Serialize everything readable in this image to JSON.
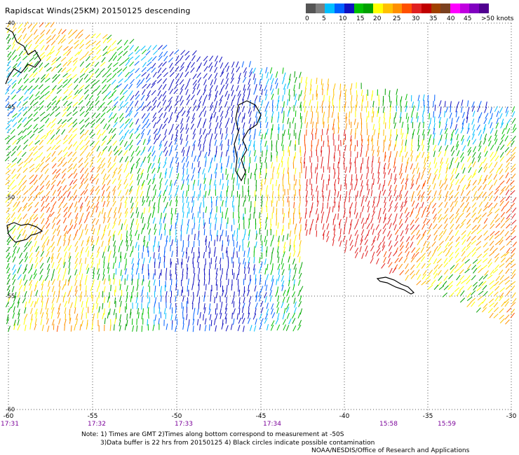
{
  "title": "Rapidscat Winds(25KM) 20150125 descending",
  "legend": {
    "colors": [
      "#555555",
      "#7f7f7f",
      "#00bfff",
      "#0060ff",
      "#1010c0",
      "#00c000",
      "#00a000",
      "#ffff00",
      "#ffc000",
      "#ff9000",
      "#ff5000",
      "#e02020",
      "#c00000",
      "#a04000",
      "#7a4020",
      "#ff00ff",
      "#c000e0",
      "#8000c0",
      "#500090"
    ],
    "labels": [
      "0",
      "5",
      "10",
      "15",
      "20",
      "25",
      "30",
      "35",
      "40",
      "45",
      ">50 knots"
    ]
  },
  "axes": {
    "longitude_labels": [
      "-60",
      "-55",
      "-50",
      "-45",
      "-40",
      "-35",
      "-30"
    ],
    "latitude_labels": [
      "-40",
      "-45",
      "-50",
      "-55",
      "-60"
    ],
    "time_labels": [
      "17:31",
      "17:32",
      "17:33",
      "17:34",
      "15:58",
      "15:59"
    ]
  },
  "notes": {
    "line1": "Note: 1) Times are GMT 2)Times along bottom correspond to measurement at -50S",
    "line2": "3)Data buffer is 22 hrs from 20150125 4) Black circles indicate possible contamination"
  },
  "credit": "NOAA/NESDIS/Office of Research and Applications"
}
